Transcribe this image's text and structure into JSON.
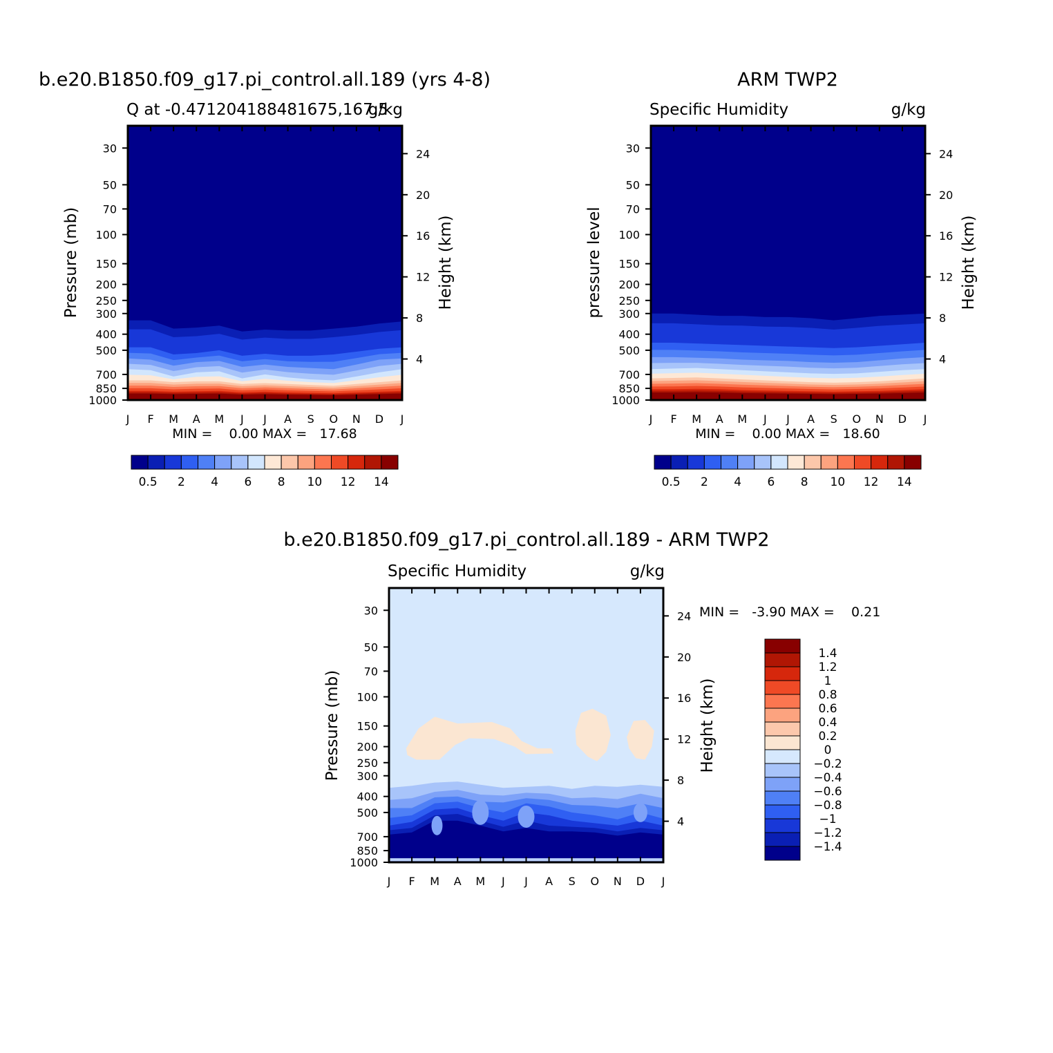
{
  "months": [
    "J",
    "F",
    "M",
    "A",
    "M",
    "J",
    "J",
    "A",
    "S",
    "O",
    "N",
    "D",
    "J"
  ],
  "pressure_ticks": [
    30,
    50,
    70,
    100,
    150,
    200,
    250,
    300,
    400,
    500,
    700,
    850,
    1000
  ],
  "height_ticks": [
    24,
    20,
    16,
    12,
    8,
    4
  ],
  "colors": {
    "model_obs_levels": [
      "#00008b",
      "#0a1fb4",
      "#1838d8",
      "#2f5ff2",
      "#4f80f6",
      "#7ea2f8",
      "#a8c4fa",
      "#d2e6fd",
      "#fde8d6",
      "#fcc7aa",
      "#fca37f",
      "#fc7650",
      "#ef4a26",
      "#d6270c",
      "#b01604",
      "#880000"
    ],
    "diff_levels": [
      "#00008b",
      "#0a1fb4",
      "#1838d8",
      "#2f5ff2",
      "#4f80f6",
      "#7ea2f8",
      "#a8c4fa",
      "#d6e8fd",
      "#fbe6d2",
      "#fcc8ac",
      "#fca37f",
      "#fc7650",
      "#ef4a26",
      "#d6270c",
      "#b01604",
      "#880000"
    ]
  },
  "charts": [
    {
      "id": "model",
      "title": "b.e20.B1850.f09_g17.pi_control.all.189 (yrs 4-8)",
      "subtitle_left": "Q at -0.471204188481675,167.5",
      "subtitle_right": "g/kg",
      "ylabel_left": "Pressure (mb)",
      "ylabel_right": "Height (km)",
      "minmax": "MIN =    0.00 MAX =   17.68",
      "colorbar_labels": [
        "0.5",
        "2",
        "4",
        "6",
        "8",
        "10",
        "12",
        "14"
      ]
    },
    {
      "id": "obs",
      "title": "ARM TWP2",
      "subtitle_left": "Specific Humidity",
      "subtitle_right": "g/kg",
      "ylabel_left": "pressure level",
      "ylabel_right": "Height (km)",
      "minmax": "MIN =    0.00 MAX =   18.60",
      "colorbar_labels": [
        "0.5",
        "2",
        "4",
        "6",
        "8",
        "10",
        "12",
        "14"
      ]
    },
    {
      "id": "diff",
      "title": "b.e20.B1850.f09_g17.pi_control.all.189 - ARM TWP2",
      "subtitle_left": "Specific Humidity",
      "subtitle_right": "g/kg",
      "ylabel_left": "Pressure (mb)",
      "ylabel_right": "Height (km)",
      "minmax": "MIN =   -3.90 MAX =    0.21",
      "colorbar_labels": [
        "1.4",
        "1.2",
        "1",
        "0.8",
        "0.6",
        "0.4",
        "0.2",
        "0",
        "-0.2",
        "-0.4",
        "-0.6",
        "-0.8",
        "-1",
        "-1.2",
        "-1.4"
      ]
    }
  ],
  "chart_data": [
    {
      "type": "heatmap",
      "title": "b.e20.B1850.f09_g17.pi_control.all.189 (yrs 4-8)",
      "subtitle": "Q at -0.471204188481675,167.5",
      "units": "g/kg",
      "xlabel": "",
      "ylabel": "Pressure (mb)",
      "y2label": "Height (km)",
      "x_categories": [
        "J",
        "F",
        "M",
        "A",
        "M",
        "J",
        "J",
        "A",
        "S",
        "O",
        "N",
        "D",
        "J"
      ],
      "ylim": [
        1000,
        20
      ],
      "yscale": "log",
      "levels": [
        0.5,
        1,
        2,
        3,
        4,
        5,
        6,
        7,
        8,
        9,
        10,
        11,
        12,
        13,
        14
      ],
      "min": 0.0,
      "max": 17.68,
      "isolines_pressure": {
        "q_0.5": [
          330,
          330,
          370,
          365,
          355,
          385,
          375,
          380,
          380,
          370,
          360,
          345,
          335
        ],
        "q_2": [
          480,
          480,
          530,
          520,
          500,
          540,
          525,
          540,
          540,
          530,
          510,
          490,
          480
        ],
        "q_4": [
          560,
          570,
          620,
          590,
          580,
          630,
          610,
          630,
          640,
          650,
          610,
          570,
          560
        ],
        "q_6": [
          650,
          660,
          720,
          680,
          670,
          740,
          700,
          730,
          750,
          760,
          720,
          680,
          650
        ],
        "q_8": [
          760,
          760,
          780,
          770,
          770,
          800,
          790,
          800,
          810,
          820,
          800,
          780,
          760
        ],
        "q_12": [
          880,
          880,
          890,
          885,
          880,
          900,
          890,
          900,
          905,
          910,
          900,
          890,
          880
        ]
      }
    },
    {
      "type": "heatmap",
      "title": "ARM TWP2",
      "subtitle": "Specific Humidity",
      "units": "g/kg",
      "xlabel": "",
      "ylabel": "pressure level",
      "y2label": "Height (km)",
      "x_categories": [
        "J",
        "F",
        "M",
        "A",
        "M",
        "J",
        "J",
        "A",
        "S",
        "O",
        "N",
        "D",
        "J"
      ],
      "ylim": [
        1000,
        20
      ],
      "yscale": "log",
      "levels": [
        0.5,
        1,
        2,
        3,
        4,
        5,
        6,
        7,
        8,
        9,
        10,
        11,
        12,
        13,
        14
      ],
      "min": 0.0,
      "max": 18.6,
      "isolines_pressure": {
        "q_0.5": [
          300,
          300,
          305,
          310,
          310,
          315,
          315,
          320,
          330,
          320,
          310,
          305,
          300
        ],
        "q_2": [
          450,
          450,
          455,
          460,
          465,
          470,
          475,
          480,
          485,
          480,
          470,
          460,
          450
        ],
        "q_4": [
          550,
          550,
          555,
          560,
          570,
          575,
          580,
          590,
          595,
          590,
          575,
          560,
          550
        ],
        "q_6": [
          650,
          645,
          640,
          650,
          660,
          670,
          680,
          690,
          695,
          690,
          675,
          660,
          650
        ],
        "q_8": [
          740,
          735,
          730,
          740,
          750,
          760,
          770,
          780,
          785,
          780,
          770,
          755,
          740
        ],
        "q_12": [
          860,
          860,
          855,
          860,
          870,
          875,
          880,
          885,
          890,
          885,
          880,
          870,
          860
        ]
      }
    },
    {
      "type": "heatmap",
      "title": "b.e20.B1850.f09_g17.pi_control.all.189 - ARM TWP2",
      "subtitle": "Specific Humidity",
      "units": "g/kg",
      "xlabel": "",
      "ylabel": "Pressure (mb)",
      "y2label": "Height (km)",
      "x_categories": [
        "J",
        "F",
        "M",
        "A",
        "M",
        "J",
        "J",
        "A",
        "S",
        "O",
        "N",
        "D",
        "J"
      ],
      "ylim": [
        1000,
        20
      ],
      "yscale": "log",
      "levels": [
        -1.4,
        -1.2,
        -1,
        -0.8,
        -0.6,
        -0.4,
        -0.2,
        0,
        0.2,
        0.4,
        0.6,
        0.8,
        1,
        1.2,
        1.4
      ],
      "min": -3.9,
      "max": 0.21,
      "features": {
        "background_value_range": [
          -0.2,
          0
        ],
        "positive_patches_range": [
          0,
          0.2
        ],
        "positive_patch_months": [
          "F-J",
          "O",
          "D"
        ],
        "positive_patch_pressure_mb": [
          150,
          230
        ],
        "strong_negative_layer_pressure_mb": [
          690,
          900
        ],
        "strong_negative_value": "< -1.4"
      }
    }
  ]
}
